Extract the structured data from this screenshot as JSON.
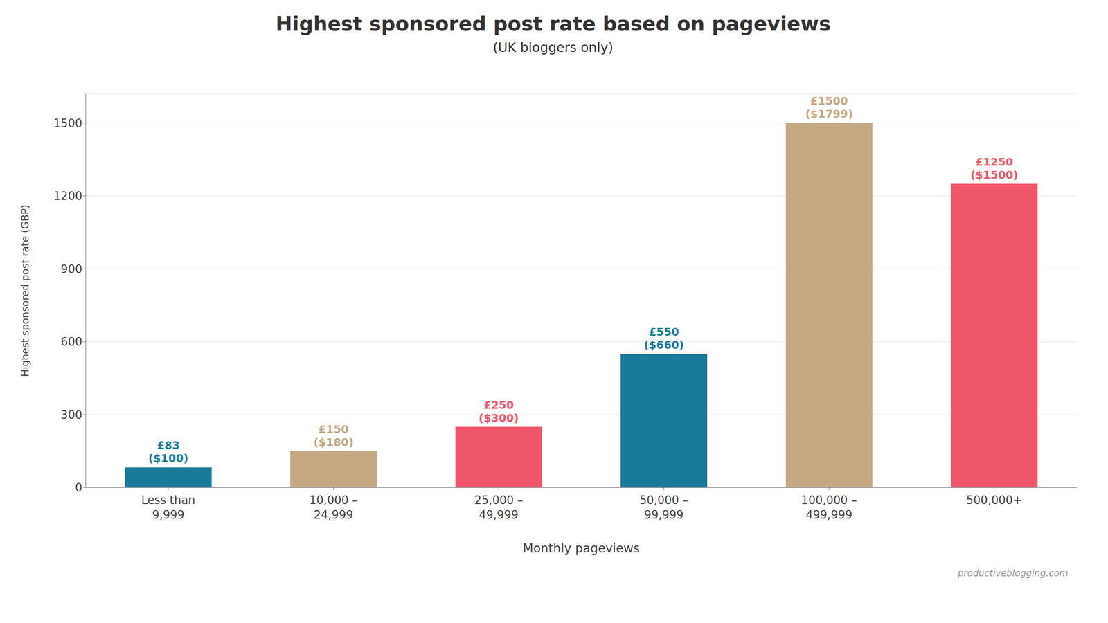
{
  "chart_data": {
    "type": "bar",
    "title": "Highest sponsored post rate based on pageviews",
    "subtitle": "(UK bloggers only)",
    "xlabel": "Monthly pageviews",
    "ylabel": "Highest sponsored post rate (GBP)",
    "watermark": "productiveblogging.com",
    "categories": [
      "Less than\n9,999",
      "10,000 –\n24,999",
      "25,000 –\n49,999",
      "50,000 –\n99,999",
      "100,000 –\n499,999",
      "500,000+"
    ],
    "values": [
      83,
      150,
      250,
      550,
      1500,
      1250
    ],
    "value_labels": [
      "£83\n($100)",
      "£150\n($180)",
      "£250\n($300)",
      "£550\n($660)",
      "£1500\n($1799)",
      "£1250\n($1500)"
    ],
    "colors": [
      "#1a7a9a",
      "#c4a882",
      "#f0566a",
      "#1a7a9a",
      "#c4a882",
      "#f0566a"
    ],
    "ylim": [
      0,
      1620
    ],
    "yticks": [
      0,
      300,
      600,
      900,
      1200,
      1500
    ],
    "grid": true
  }
}
